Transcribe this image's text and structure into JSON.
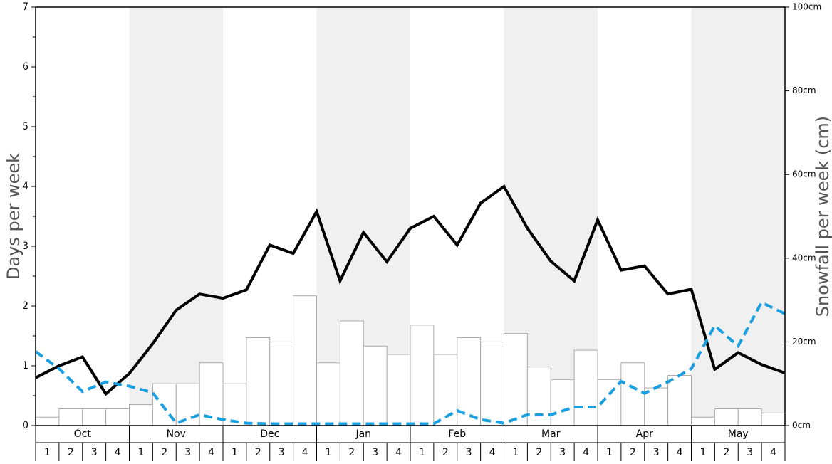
{
  "chart_data": {
    "type": "bar-line",
    "y_label": "Days per week",
    "y2_label": "Snowfall per week (cm)",
    "months": [
      "Oct",
      "Nov",
      "Dec",
      "Jan",
      "Feb",
      "Mar",
      "Apr",
      "May"
    ],
    "categories": [
      "1",
      "2",
      "3",
      "4",
      "1",
      "2",
      "3",
      "4",
      "1",
      "2",
      "3",
      "4",
      "1",
      "2",
      "3",
      "4",
      "1",
      "2",
      "3",
      "4",
      "1",
      "2",
      "3",
      "4",
      "1",
      "2",
      "3",
      "4",
      "1",
      "2",
      "3",
      "4"
    ],
    "ylim": [
      0,
      7
    ],
    "yticks": [
      0,
      1,
      2,
      3,
      4,
      5,
      6,
      7
    ],
    "y2lim": [
      0,
      100
    ],
    "y2ticks": [
      {
        "value": 0,
        "label": "0cm"
      },
      {
        "value": 20,
        "label": "20cm"
      },
      {
        "value": 40,
        "label": "40cm"
      },
      {
        "value": 60,
        "label": "60cm"
      },
      {
        "value": 80,
        "label": "80cm"
      },
      {
        "value": 100,
        "label": "100cm"
      }
    ],
    "xlim": [
      0,
      32
    ],
    "series": [
      {
        "type": "bar",
        "axis": "y2",
        "color": "#ffffff",
        "values": [
          2,
          4,
          4,
          4,
          5,
          10,
          10,
          15,
          10,
          21,
          20,
          31,
          15,
          25,
          19,
          17,
          24,
          17,
          21,
          20,
          22,
          14,
          11,
          18,
          11,
          15,
          9,
          12,
          2,
          4,
          4,
          3
        ]
      },
      {
        "type": "line",
        "color": "#000000",
        "x": [
          0,
          1,
          2,
          3,
          4,
          5,
          6,
          7,
          8,
          9,
          10,
          11,
          12,
          13,
          14,
          15,
          16,
          17,
          18,
          19,
          20,
          21,
          22,
          23,
          24,
          25,
          26,
          27,
          28,
          29,
          30,
          31,
          32
        ],
        "values": [
          0.8,
          1.0,
          1.15,
          0.53,
          0.87,
          1.37,
          1.93,
          2.2,
          2.13,
          2.27,
          3.02,
          2.88,
          3.58,
          2.42,
          3.23,
          2.74,
          3.3,
          3.5,
          3.02,
          3.72,
          4.0,
          3.3,
          2.75,
          2.42,
          3.44,
          2.6,
          2.67,
          2.2,
          2.28,
          0.94,
          1.22,
          1.02,
          0.88
        ]
      },
      {
        "type": "line",
        "dashed": true,
        "color": "#1a9fe0",
        "x": [
          0,
          1,
          2,
          3,
          4,
          5,
          6,
          7,
          8,
          9,
          10,
          11,
          12,
          13,
          14,
          15,
          16,
          17,
          18,
          19,
          20,
          21,
          22,
          23,
          24,
          25,
          26,
          27,
          28,
          29,
          30,
          31,
          32
        ],
        "values": [
          1.24,
          0.95,
          0.57,
          0.73,
          0.66,
          0.55,
          0.04,
          0.18,
          0.1,
          0.04,
          0.03,
          0.03,
          0.03,
          0.03,
          0.03,
          0.03,
          0.03,
          0.03,
          0.25,
          0.1,
          0.04,
          0.18,
          0.18,
          0.31,
          0.31,
          0.74,
          0.54,
          0.73,
          0.95,
          1.67,
          1.33,
          2.06,
          1.87
        ]
      }
    ]
  }
}
